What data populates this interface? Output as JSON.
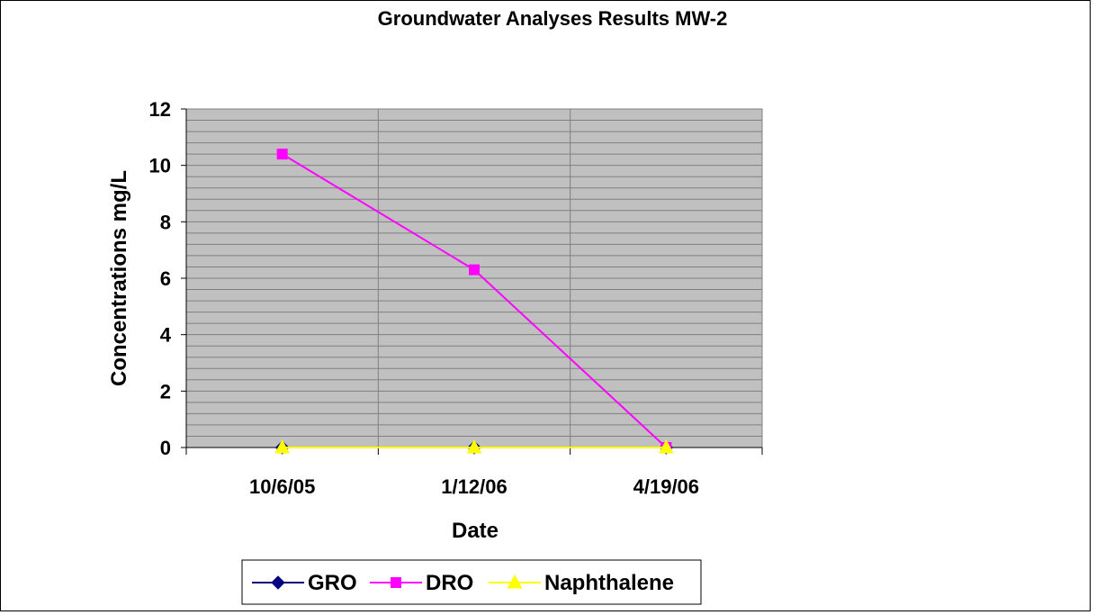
{
  "chart_data": {
    "type": "line",
    "title": "Groundwater Analyses Results MW-2",
    "xlabel": "Date",
    "ylabel": "Concentrations mg/L",
    "categories": [
      "10/6/05",
      "1/12/06",
      "4/19/06"
    ],
    "ylim": [
      0,
      12
    ],
    "yticks": [
      0,
      2,
      4,
      6,
      8,
      10,
      12
    ],
    "grid": true,
    "legend_position": "bottom",
    "plot_background": "#c0c0c0",
    "series": [
      {
        "name": "GRO",
        "values": [
          0,
          0,
          0
        ],
        "color": "#000080",
        "marker": "diamond"
      },
      {
        "name": "DRO",
        "values": [
          10.4,
          6.3,
          0
        ],
        "color": "#ff00ff",
        "marker": "square"
      },
      {
        "name": "Naphthalene",
        "values": [
          0,
          0,
          0
        ],
        "color": "#ffff00",
        "marker": "triangle"
      }
    ]
  }
}
